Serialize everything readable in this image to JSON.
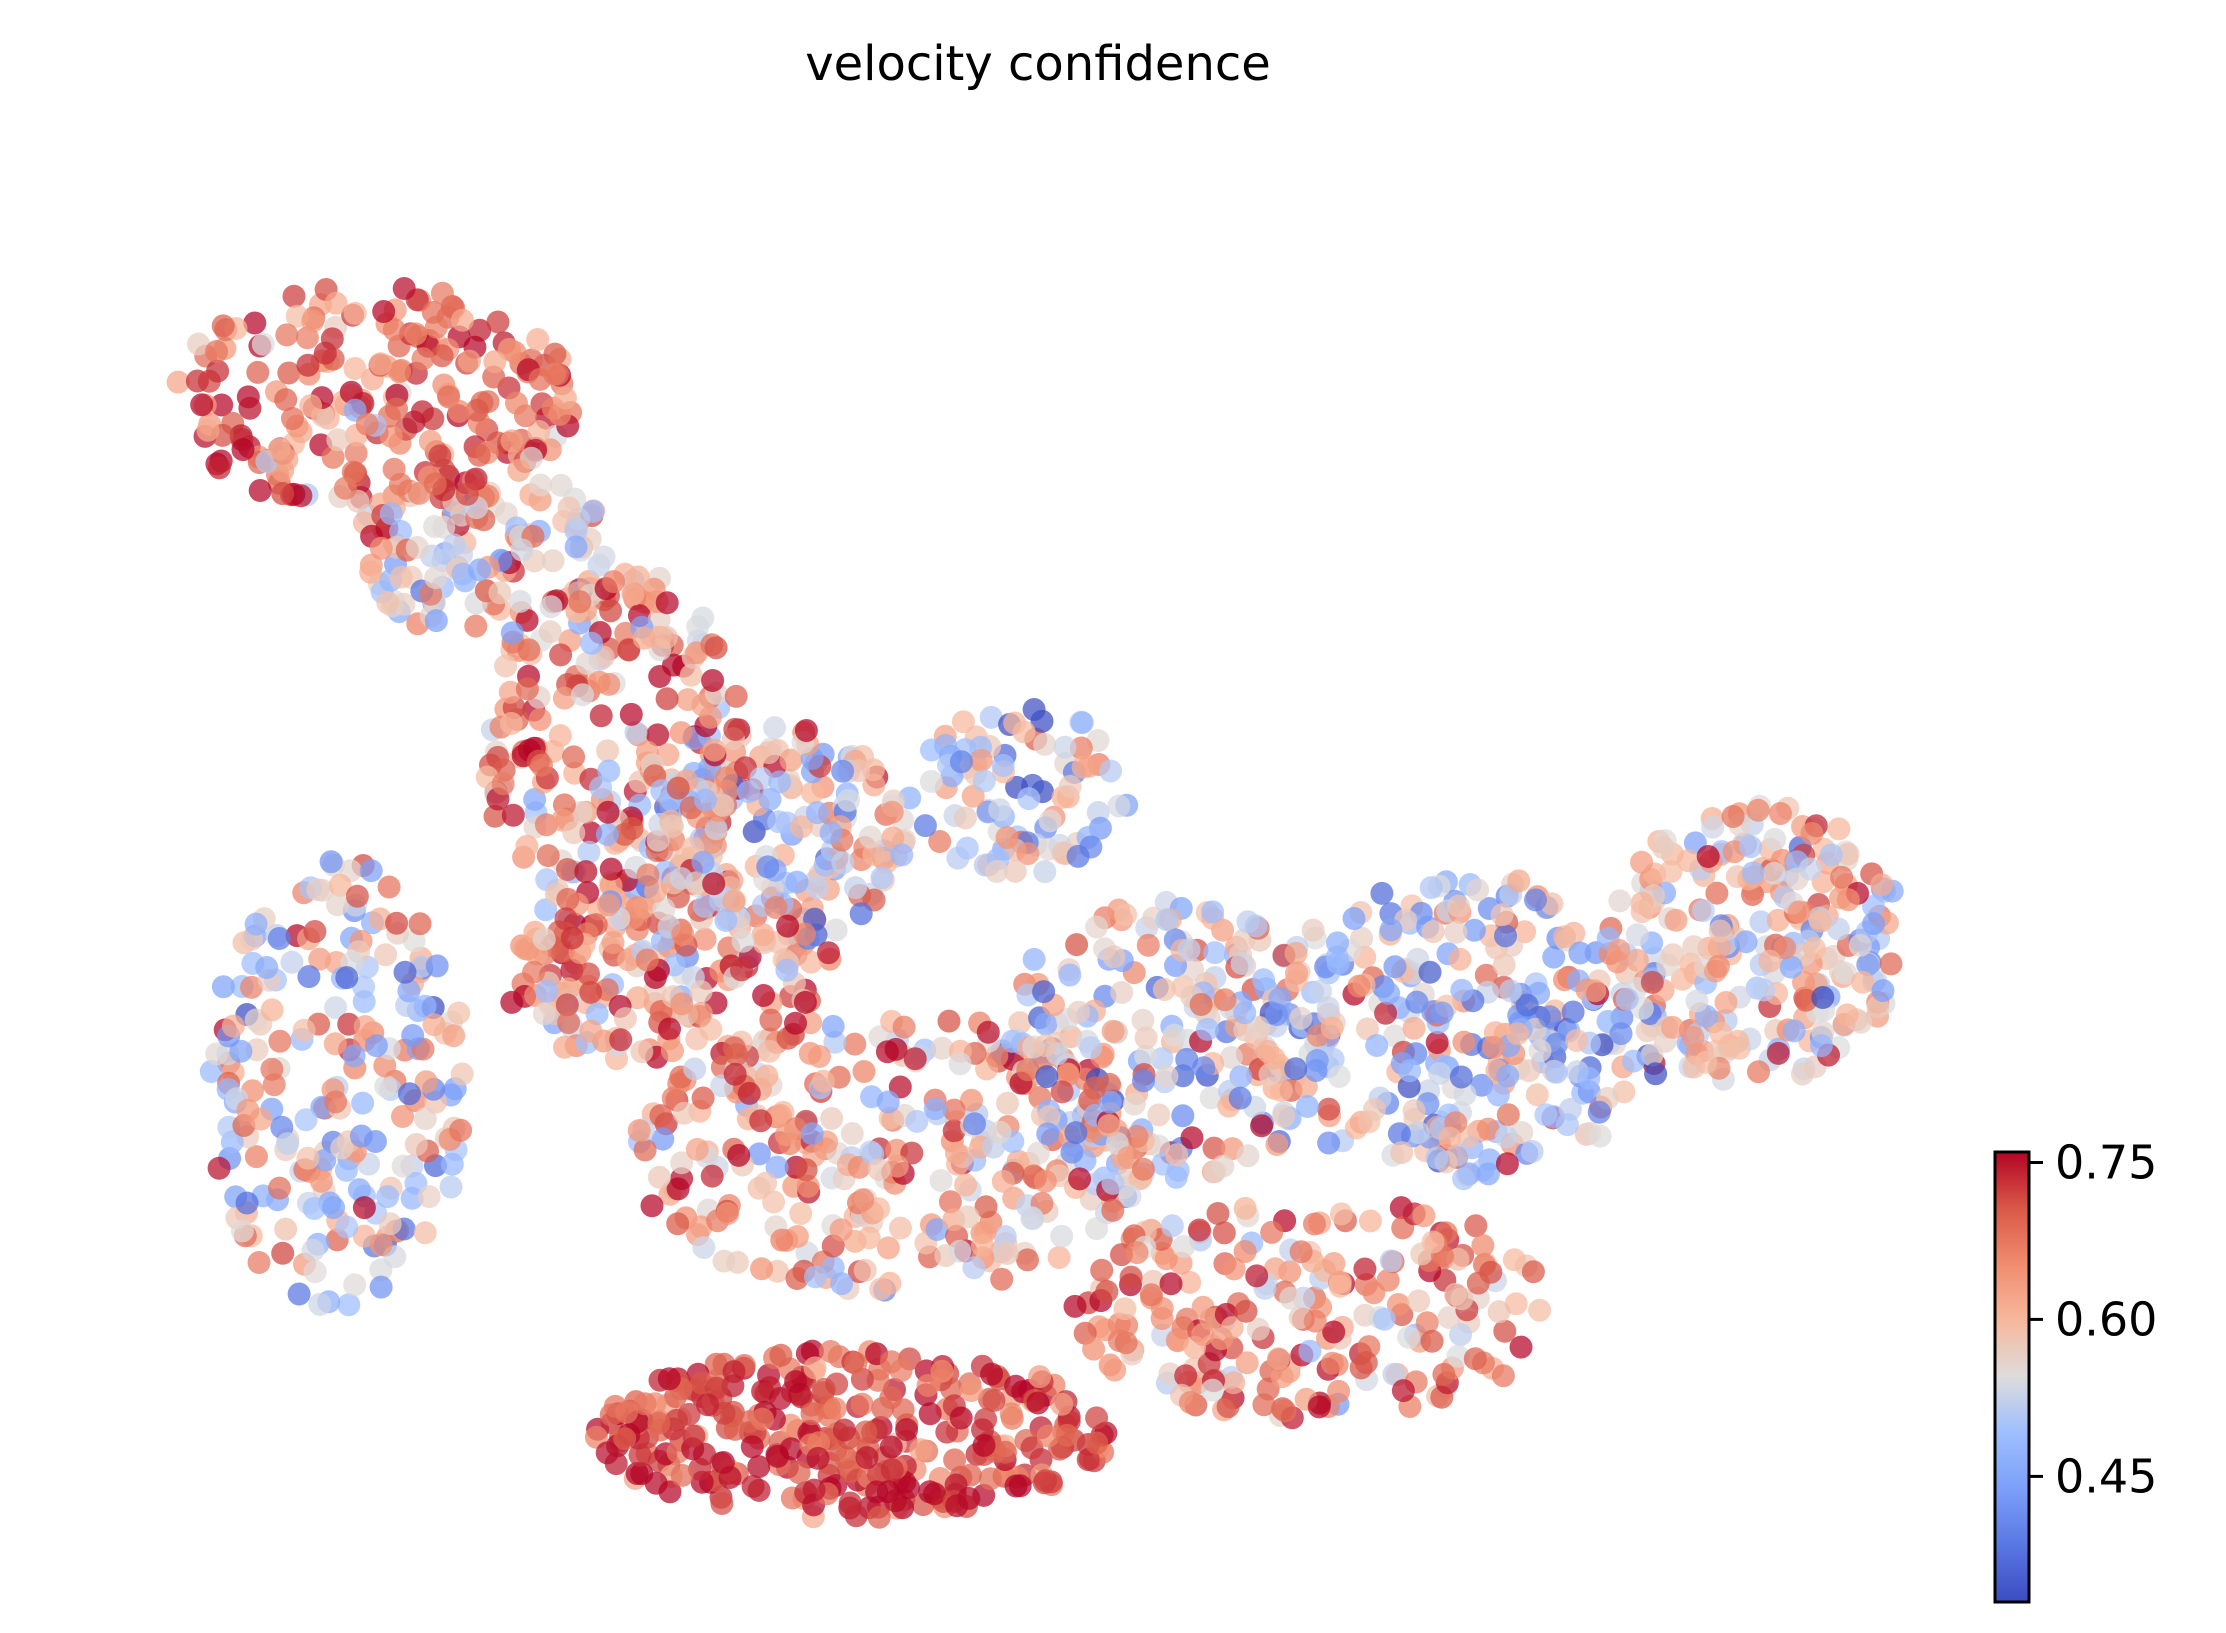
{
  "chart_data": {
    "type": "scatter",
    "title": "velocity confidence",
    "xlabel": "",
    "ylabel": "",
    "axes_visible": false,
    "grid": false,
    "point_count_approx": 2800,
    "colormap": {
      "name": "coolwarm",
      "min": 0.33,
      "max": 0.76,
      "low_color": "#3b4cc0",
      "mid_color": "#dddcdc",
      "high_color": "#b40426",
      "ticks": [
        {
          "value": 0.75,
          "label": "0.75"
        },
        {
          "value": 0.6,
          "label": "0.60"
        },
        {
          "value": 0.45,
          "label": "0.45"
        }
      ],
      "placement": "bottom-right"
    },
    "regions": [
      {
        "cx": 0.14,
        "cy": 0.83,
        "rx": 0.11,
        "ry": 0.08,
        "n": 230,
        "mean": 0.68,
        "sd": 0.06
      },
      {
        "cx": 0.2,
        "cy": 0.72,
        "rx": 0.07,
        "ry": 0.06,
        "n": 120,
        "mean": 0.58,
        "sd": 0.09
      },
      {
        "cx": 0.27,
        "cy": 0.58,
        "rx": 0.07,
        "ry": 0.13,
        "n": 260,
        "mean": 0.63,
        "sd": 0.09
      },
      {
        "cx": 0.36,
        "cy": 0.52,
        "rx": 0.07,
        "ry": 0.08,
        "n": 160,
        "mean": 0.58,
        "sd": 0.11
      },
      {
        "cx": 0.12,
        "cy": 0.34,
        "rx": 0.07,
        "ry": 0.16,
        "n": 230,
        "mean": 0.55,
        "sd": 0.1
      },
      {
        "cx": 0.3,
        "cy": 0.42,
        "rx": 0.09,
        "ry": 0.07,
        "n": 200,
        "mean": 0.63,
        "sd": 0.09
      },
      {
        "cx": 0.42,
        "cy": 0.29,
        "rx": 0.14,
        "ry": 0.1,
        "n": 320,
        "mean": 0.62,
        "sd": 0.09
      },
      {
        "cx": 0.4,
        "cy": 0.09,
        "rx": 0.14,
        "ry": 0.06,
        "n": 330,
        "mean": 0.72,
        "sd": 0.05
      },
      {
        "cx": 0.57,
        "cy": 0.37,
        "rx": 0.09,
        "ry": 0.1,
        "n": 220,
        "mean": 0.56,
        "sd": 0.1
      },
      {
        "cx": 0.65,
        "cy": 0.18,
        "rx": 0.13,
        "ry": 0.08,
        "n": 230,
        "mean": 0.66,
        "sd": 0.08
      },
      {
        "cx": 0.73,
        "cy": 0.38,
        "rx": 0.11,
        "ry": 0.11,
        "n": 300,
        "mean": 0.53,
        "sd": 0.1
      },
      {
        "cx": 0.89,
        "cy": 0.44,
        "rx": 0.08,
        "ry": 0.1,
        "n": 250,
        "mean": 0.57,
        "sd": 0.09
      },
      {
        "cx": 0.49,
        "cy": 0.55,
        "rx": 0.06,
        "ry": 0.06,
        "n": 90,
        "mean": 0.52,
        "sd": 0.09
      }
    ]
  }
}
